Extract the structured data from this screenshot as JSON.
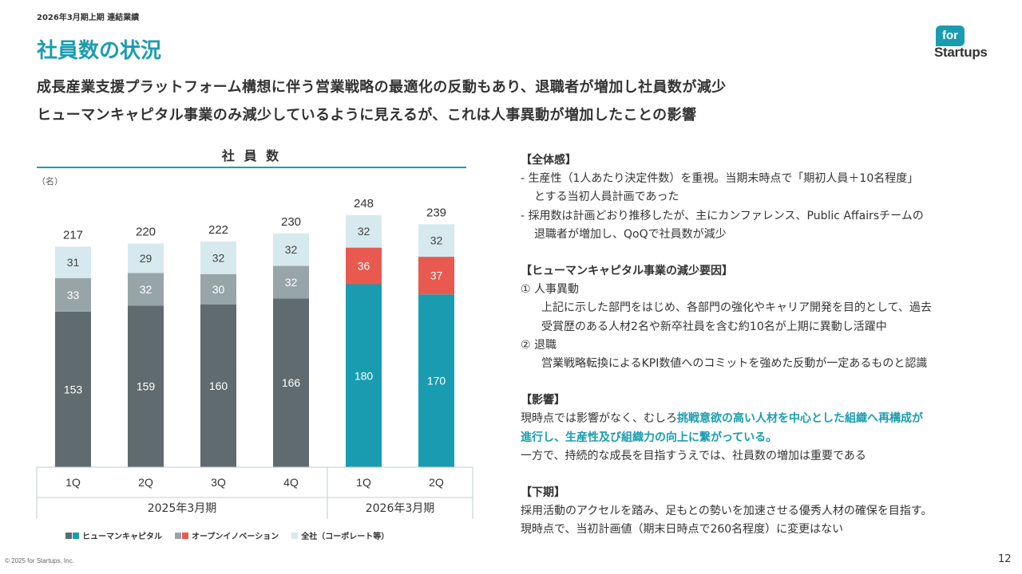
{
  "header": {
    "breadcrumb": "2026年3月期上期 連結業績",
    "title": "社員数の状況",
    "logo_top": "for",
    "logo_bottom": "Startups"
  },
  "headline": {
    "line1": "成長産業支援プラットフォーム構想に伴う営業戦略の最適化の反動もあり、退職者が増加し社員数が減少",
    "line2": "ヒューマンキャピタル事業のみ減少しているように見えるが、これは人事異動が増加したことの影響"
  },
  "chart_data": {
    "type": "bar",
    "stacked": true,
    "title": "社 員 数",
    "unit": "（名）",
    "categories": [
      "1Q",
      "2Q",
      "3Q",
      "4Q",
      "1Q",
      "2Q"
    ],
    "periods": [
      {
        "label": "2025年3月期",
        "count": 4
      },
      {
        "label": "2026年3月期",
        "count": 2
      }
    ],
    "totals": [
      217,
      220,
      222,
      230,
      248,
      239
    ],
    "series": [
      {
        "name": "ヒューマンキャピタル",
        "values": [
          153,
          159,
          160,
          166,
          180,
          170
        ]
      },
      {
        "name": "オープンイノベーション",
        "values": [
          33,
          32,
          30,
          32,
          36,
          37
        ]
      },
      {
        "name": "全社（コーポレート等）",
        "values": [
          31,
          29,
          32,
          32,
          32,
          32
        ]
      }
    ],
    "colors": {
      "hc_past": "#5f6b6e",
      "hc_current": "#1a9cb0",
      "oi_past": "#98a5a8",
      "oi_current": "#e8594f",
      "corp": "#d6e9ee"
    },
    "ylim": [
      0,
      260
    ],
    "grid": false
  },
  "notes": {
    "overall": {
      "heading": "【全体感】",
      "item1_line1": "-  生産性（1人あたり決定件数）を重視。当期末時点で「期初人員＋10名程度」",
      "item1_line2": "とする当初人員計画であった",
      "item2_line1": "-  採用数は計画どおり推移したが、主にカンファレンス、Public Affairsチームの",
      "item2_line2": "退職者が増加し、QoQで社員数が減少"
    },
    "hc_decrease": {
      "heading": "【ヒューマンキャピタル事業の減少要因】",
      "item1_title": "①  人事異動",
      "item1_line1": "上記に示した部門をはじめ、各部門の強化やキャリア開発を目的として、過去",
      "item1_line2": "受賞歴のある人材2名や新卒社員を含む約10名が上期に異動し活躍中",
      "item2_title": "②  退職",
      "item2_line1": "営業戦略転換によるKPI数値へのコミットを強めた反動が一定あるものと認識"
    },
    "impact": {
      "heading": "【影響】",
      "line1_pre": "現時点では影響がなく、むしろ",
      "line1_hl": "挑戦意欲の高い人材を中心とした組織へ再構成が",
      "line2_hl": "進行し、生産性及び組織力の向上に繋がっている。",
      "line3": "一方で、持続的な成長を目指すうえでは、社員数の増加は重要である"
    },
    "h2": {
      "heading": "【下期】",
      "line1": "採用活動のアクセルを踏み、足もとの勢いを加速させる優秀人材の確保を目指す。",
      "line2": "現時点で、当初計画値（期末日時点で260名程度）に変更はない"
    }
  },
  "footer": {
    "copyright": "© 2025 for Startups, Inc.",
    "page_number": "12"
  }
}
